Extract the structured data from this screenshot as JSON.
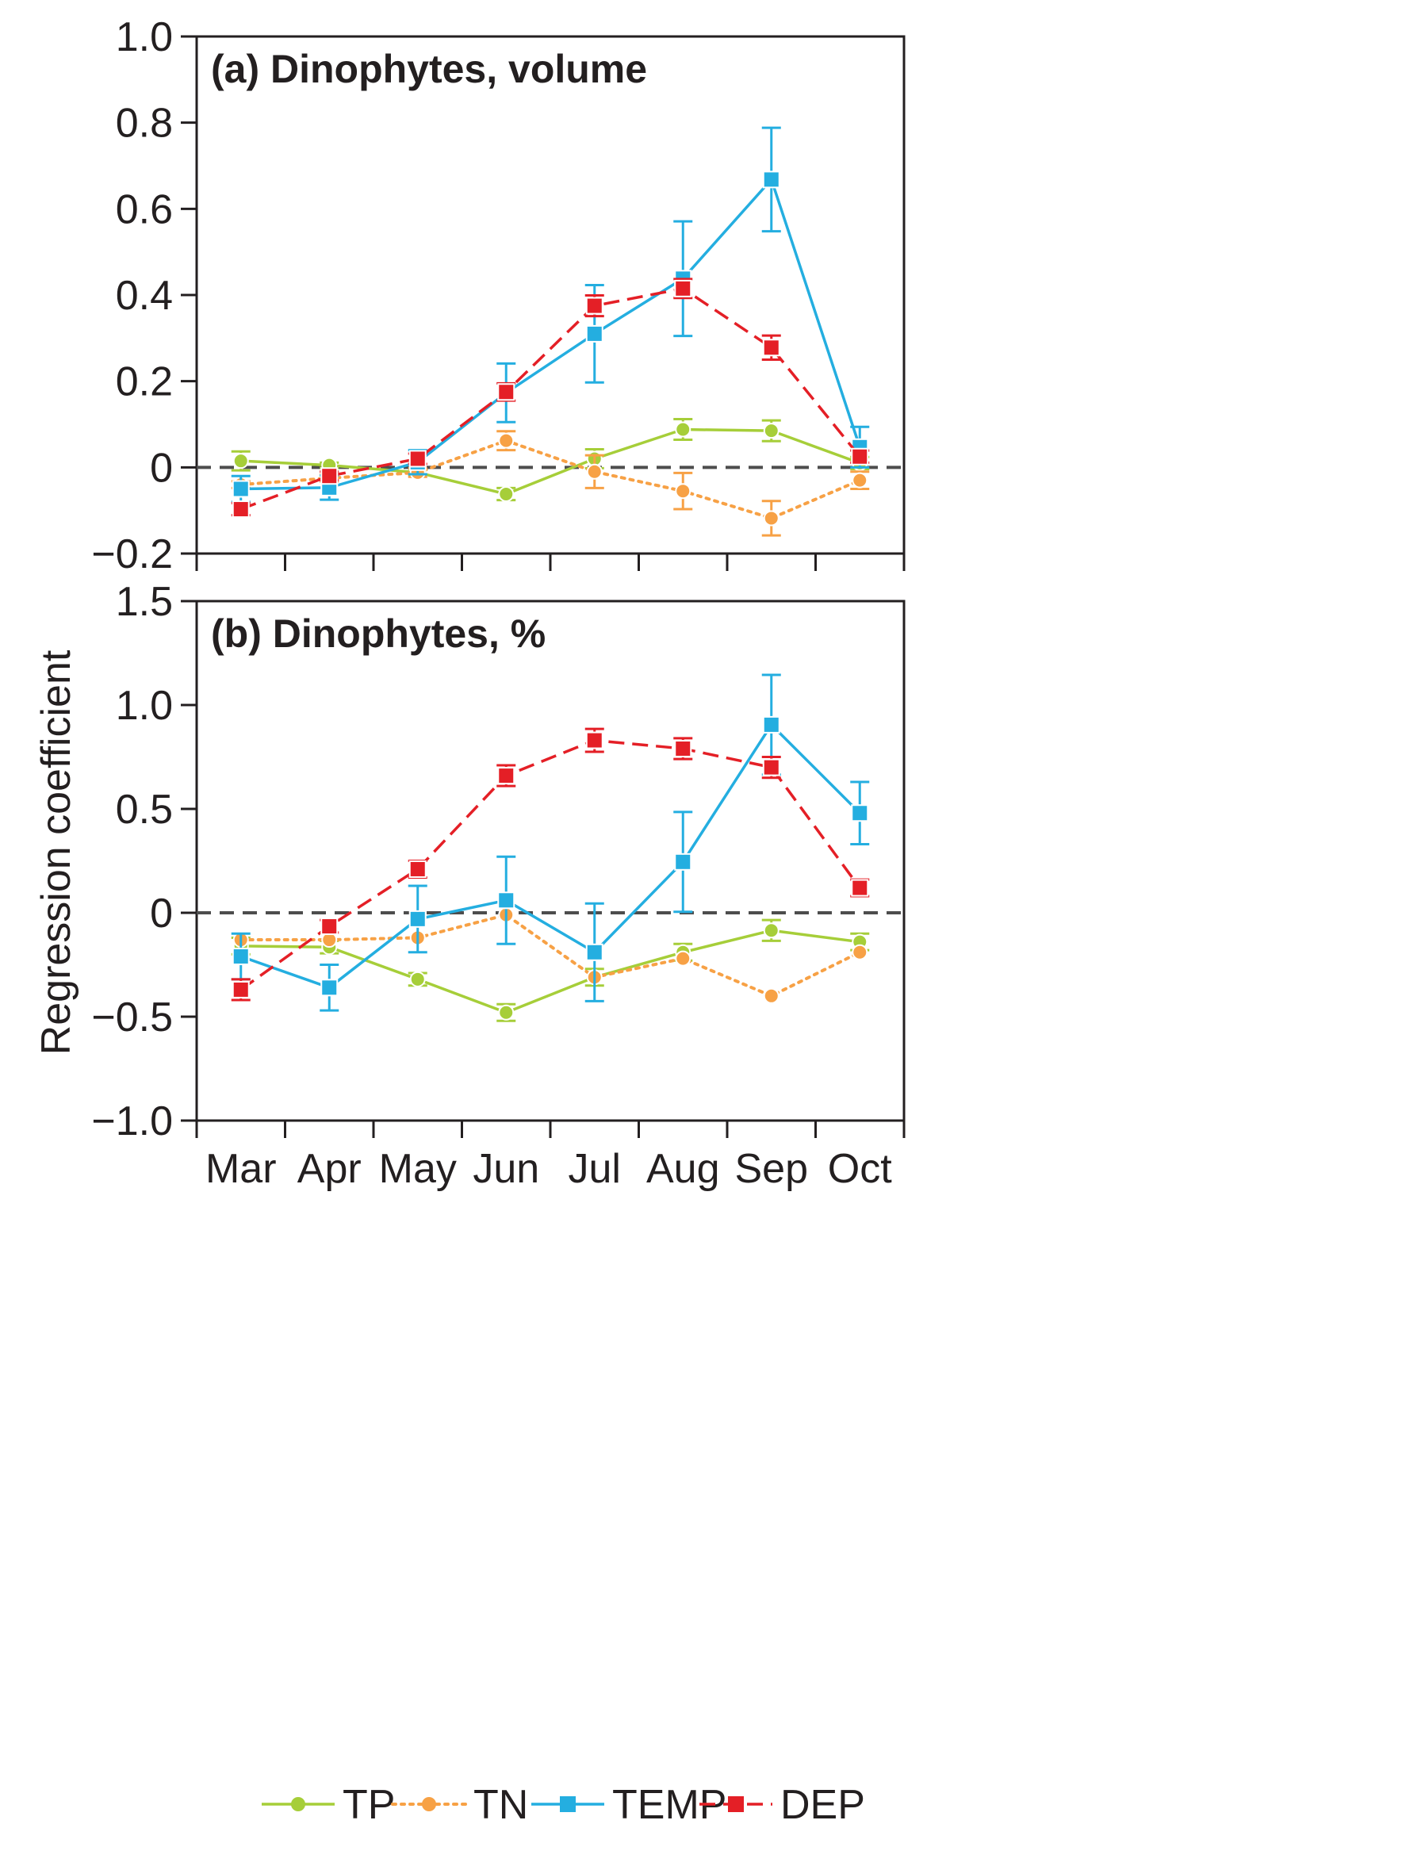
{
  "colors": {
    "TP": "#a6ce39",
    "TN": "#f7a145",
    "TEMP": "#24aee0",
    "DEP": "#e41f26",
    "axis": "#231f20",
    "zero_line": "#4d4d4d"
  },
  "shared_ylabel": "Regression coefficient",
  "chart_data": [
    {
      "type": "line",
      "title": "(a) Dinophytes, volume",
      "xlabel": "",
      "ylabel": "Regression coefficient",
      "categories": [
        "Mar",
        "Apr",
        "May",
        "Jun",
        "Jul",
        "Aug",
        "Sep",
        "Oct"
      ],
      "ylim": [
        -0.2,
        1.0
      ],
      "yticks": [
        -0.2,
        0,
        0.2,
        0.4,
        0.6,
        0.8,
        1.0
      ],
      "ytick_labels": [
        "−0.2",
        "0",
        "0.2",
        "0.4",
        "0.6",
        "0.8",
        "1.0"
      ],
      "zero_line": true,
      "series": [
        {
          "name": "TP",
          "style": "solid",
          "marker": "circle",
          "values": [
            0.015,
            0.005,
            -0.012,
            -0.062,
            0.02,
            0.088,
            0.085,
            0.01
          ],
          "errors": [
            0.022,
            0.006,
            0.006,
            0.014,
            0.022,
            0.024,
            0.024,
            0.014
          ]
        },
        {
          "name": "TN",
          "style": "dotted",
          "marker": "circle",
          "values": [
            -0.04,
            -0.025,
            -0.012,
            0.062,
            -0.01,
            -0.055,
            -0.118,
            -0.03
          ],
          "errors": [
            0.008,
            0.008,
            0.01,
            0.022,
            0.038,
            0.042,
            0.04,
            0.02
          ]
        },
        {
          "name": "TEMP",
          "style": "solid",
          "marker": "square",
          "values": [
            -0.05,
            -0.047,
            0.012,
            0.173,
            0.31,
            0.438,
            0.668,
            0.047
          ],
          "errors": [
            0.03,
            0.028,
            0.028,
            0.068,
            0.113,
            0.133,
            0.12,
            0.047
          ]
        },
        {
          "name": "DEP",
          "style": "dashed",
          "marker": "square",
          "values": [
            -0.097,
            -0.02,
            0.02,
            0.175,
            0.375,
            0.415,
            0.278,
            0.025
          ],
          "errors": [
            0.014,
            0.01,
            0.012,
            0.02,
            0.024,
            0.022,
            0.028,
            0.014
          ]
        }
      ]
    },
    {
      "type": "line",
      "title": "(b) Dinophytes, %",
      "xlabel": "",
      "ylabel": "Regression coefficient",
      "categories": [
        "Mar",
        "Apr",
        "May",
        "Jun",
        "Jul",
        "Aug",
        "Sep",
        "Oct"
      ],
      "ylim": [
        -1.0,
        1.5
      ],
      "yticks": [
        -1.0,
        -0.5,
        0,
        0.5,
        1.0,
        1.5
      ],
      "ytick_labels": [
        "−1.0",
        "−0.5",
        "0",
        "0.5",
        "1.0",
        "1.5"
      ],
      "zero_line": true,
      "series": [
        {
          "name": "TP",
          "style": "solid",
          "marker": "circle",
          "values": [
            -0.16,
            -0.165,
            -0.32,
            -0.48,
            -0.31,
            -0.19,
            -0.085,
            -0.14
          ],
          "errors": [
            0.04,
            0.03,
            0.03,
            0.04,
            0.04,
            0.04,
            0.05,
            0.04
          ]
        },
        {
          "name": "TN",
          "style": "dotted",
          "marker": "circle",
          "values": [
            -0.13,
            -0.13,
            -0.12,
            -0.01,
            -0.31,
            -0.22,
            -0.4,
            -0.19
          ]
        },
        {
          "name": "TEMP",
          "style": "solid",
          "marker": "square",
          "values": [
            -0.21,
            -0.36,
            -0.03,
            0.06,
            -0.19,
            0.245,
            0.905,
            0.48
          ],
          "errors": [
            0.11,
            0.11,
            0.16,
            0.21,
            0.235,
            0.24,
            0.24,
            0.15
          ]
        },
        {
          "name": "DEP",
          "style": "dashed",
          "marker": "square",
          "values": [
            -0.37,
            -0.065,
            0.21,
            0.66,
            0.83,
            0.79,
            0.7,
            0.12
          ],
          "errors": [
            0.05,
            0.03,
            0.04,
            0.05,
            0.055,
            0.05,
            0.05,
            0.04
          ]
        }
      ]
    }
  ],
  "legend": [
    {
      "key": "TP",
      "label": "TP"
    },
    {
      "key": "TN",
      "label": "TN"
    },
    {
      "key": "TEMP",
      "label": "TEMP"
    },
    {
      "key": "DEP",
      "label": "DEP"
    }
  ]
}
